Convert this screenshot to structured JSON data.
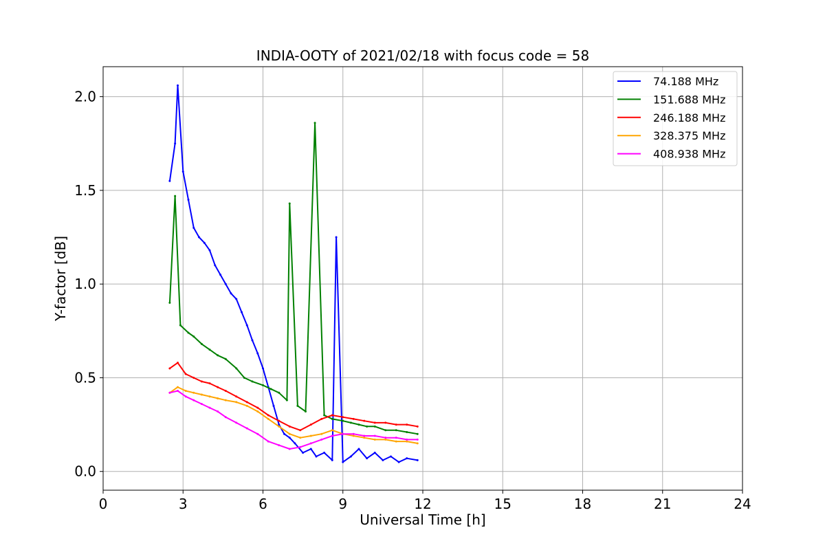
{
  "chart_data": {
    "type": "line",
    "title": "INDIA-OOTY of 2021/02/18 with focus code = 58",
    "xlabel": "Universal Time [h]",
    "ylabel": "Y-factor [dB]",
    "xlim": [
      0,
      24
    ],
    "ylim": [
      -0.1,
      2.16
    ],
    "xticks": [
      0,
      3,
      6,
      9,
      12,
      15,
      18,
      21,
      24
    ],
    "xtick_labels": [
      "0",
      "3",
      "6",
      "9",
      "12",
      "15",
      "18",
      "21",
      "24"
    ],
    "yticks": [
      0.0,
      0.5,
      1.0,
      1.5,
      2.0
    ],
    "ytick_labels": [
      "0.0",
      "0.5",
      "1.0",
      "1.5",
      "2.0"
    ],
    "grid": true,
    "legend_position": "top-right",
    "series": [
      {
        "name": " 74.188 MHz",
        "color": "#0000ff",
        "x": [
          2.5,
          2.7,
          2.8,
          3.0,
          3.2,
          3.4,
          3.6,
          3.8,
          4.0,
          4.2,
          4.4,
          4.6,
          4.8,
          5.0,
          5.2,
          5.4,
          5.6,
          5.8,
          6.0,
          6.2,
          6.4,
          6.6,
          6.8,
          7.0,
          7.2,
          7.5,
          7.8,
          8.0,
          8.3,
          8.6,
          8.75,
          9.0,
          9.3,
          9.6,
          9.9,
          10.2,
          10.5,
          10.8,
          11.1,
          11.4,
          11.8
        ],
        "y": [
          1.55,
          1.75,
          2.06,
          1.6,
          1.45,
          1.3,
          1.25,
          1.22,
          1.18,
          1.1,
          1.05,
          1.0,
          0.95,
          0.92,
          0.85,
          0.78,
          0.7,
          0.63,
          0.55,
          0.45,
          0.35,
          0.25,
          0.2,
          0.18,
          0.15,
          0.1,
          0.12,
          0.08,
          0.1,
          0.06,
          1.25,
          0.05,
          0.08,
          0.12,
          0.07,
          0.1,
          0.06,
          0.08,
          0.05,
          0.07,
          0.06
        ]
      },
      {
        "name": "151.688 MHz",
        "color": "#008000",
        "x": [
          2.5,
          2.7,
          2.9,
          3.2,
          3.4,
          3.7,
          4.0,
          4.3,
          4.6,
          5.0,
          5.3,
          5.6,
          6.0,
          6.3,
          6.6,
          6.9,
          7.0,
          7.3,
          7.6,
          7.95,
          8.3,
          8.6,
          9.0,
          9.3,
          9.6,
          9.9,
          10.2,
          10.6,
          11.0,
          11.4,
          11.8
        ],
        "y": [
          0.9,
          1.47,
          0.78,
          0.74,
          0.72,
          0.68,
          0.65,
          0.62,
          0.6,
          0.55,
          0.5,
          0.48,
          0.46,
          0.44,
          0.42,
          0.38,
          1.43,
          0.35,
          0.32,
          1.86,
          0.3,
          0.28,
          0.27,
          0.26,
          0.25,
          0.24,
          0.24,
          0.22,
          0.22,
          0.21,
          0.2
        ]
      },
      {
        "name": "246.188 MHz",
        "color": "#ff0000",
        "x": [
          2.5,
          2.8,
          3.1,
          3.4,
          3.7,
          4.0,
          4.3,
          4.6,
          5.0,
          5.4,
          5.8,
          6.2,
          6.6,
          7.0,
          7.4,
          7.8,
          8.2,
          8.6,
          9.0,
          9.4,
          9.8,
          10.2,
          10.6,
          11.0,
          11.4,
          11.8
        ],
        "y": [
          0.55,
          0.58,
          0.52,
          0.5,
          0.48,
          0.47,
          0.45,
          0.43,
          0.4,
          0.37,
          0.34,
          0.3,
          0.27,
          0.24,
          0.22,
          0.25,
          0.28,
          0.3,
          0.29,
          0.28,
          0.27,
          0.26,
          0.26,
          0.25,
          0.25,
          0.24
        ]
      },
      {
        "name": "328.375 MHz",
        "color": "#ffa500",
        "x": [
          2.5,
          2.8,
          3.1,
          3.4,
          3.7,
          4.0,
          4.3,
          4.6,
          5.0,
          5.4,
          5.8,
          6.2,
          6.6,
          7.0,
          7.4,
          7.8,
          8.2,
          8.6,
          9.0,
          9.4,
          9.8,
          10.2,
          10.6,
          11.0,
          11.4,
          11.8
        ],
        "y": [
          0.42,
          0.45,
          0.43,
          0.42,
          0.41,
          0.4,
          0.39,
          0.38,
          0.37,
          0.35,
          0.32,
          0.28,
          0.24,
          0.2,
          0.18,
          0.19,
          0.2,
          0.22,
          0.2,
          0.19,
          0.18,
          0.17,
          0.17,
          0.16,
          0.16,
          0.15
        ]
      },
      {
        "name": "408.938 MHz",
        "color": "#ff00ff",
        "x": [
          2.5,
          2.8,
          3.1,
          3.4,
          3.7,
          4.0,
          4.3,
          4.6,
          5.0,
          5.4,
          5.8,
          6.2,
          6.6,
          7.0,
          7.4,
          7.8,
          8.2,
          8.6,
          9.0,
          9.4,
          9.8,
          10.2,
          10.6,
          11.0,
          11.4,
          11.8
        ],
        "y": [
          0.42,
          0.43,
          0.4,
          0.38,
          0.36,
          0.34,
          0.32,
          0.29,
          0.26,
          0.23,
          0.2,
          0.16,
          0.14,
          0.12,
          0.13,
          0.15,
          0.17,
          0.19,
          0.2,
          0.2,
          0.19,
          0.19,
          0.18,
          0.18,
          0.17,
          0.17
        ]
      }
    ]
  }
}
